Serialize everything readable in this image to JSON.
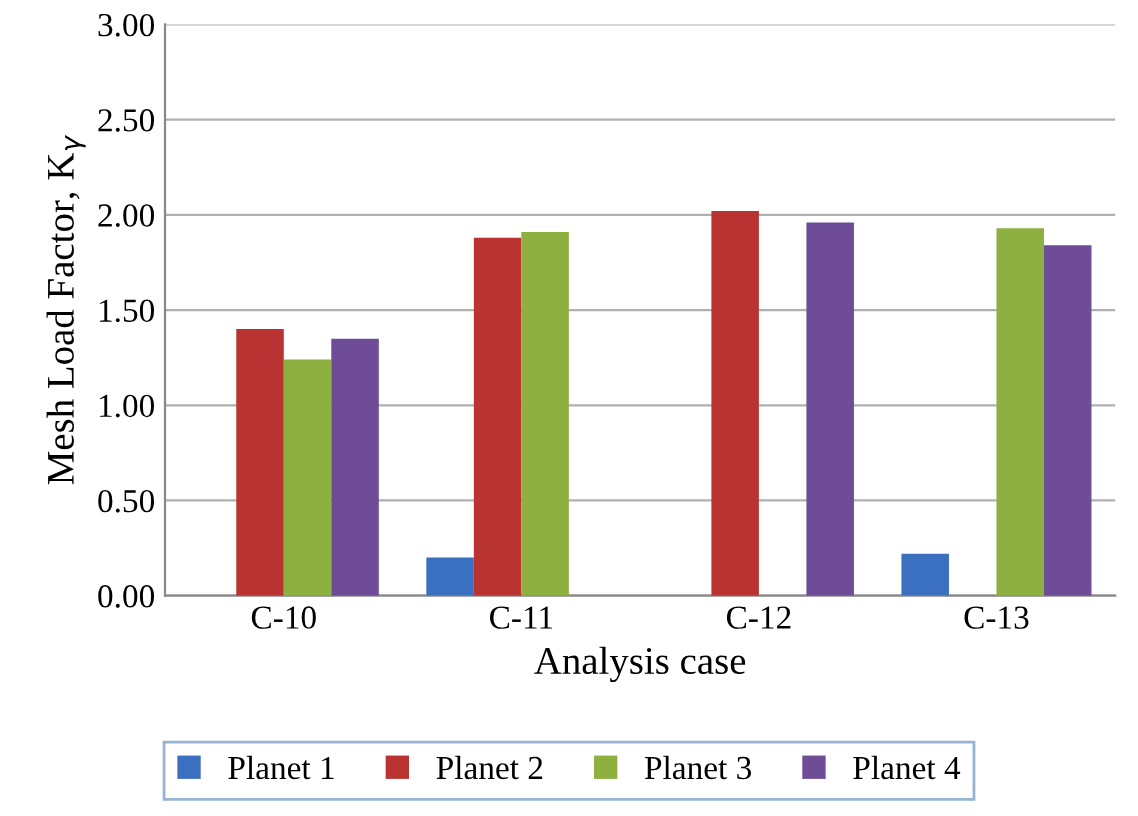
{
  "chart_data": {
    "type": "bar",
    "xlabel": "Analysis case",
    "ylabel": "Mesh Load Factor, K$_{γ}$",
    "categories": [
      "C-10",
      "C-11",
      "C-12",
      "C-13"
    ],
    "series": [
      {
        "name": "Planet 1",
        "color": "#3a70bf",
        "values": [
          0,
          0.2,
          0,
          0.22
        ]
      },
      {
        "name": "Planet 2",
        "color": "#b83331",
        "values": [
          1.4,
          1.88,
          2.02,
          0
        ]
      },
      {
        "name": "Planet 3",
        "color": "#8db040",
        "values": [
          1.24,
          1.91,
          0,
          1.93
        ]
      },
      {
        "name": "Planet 4",
        "color": "#6e4c97",
        "values": [
          1.35,
          0,
          1.96,
          1.84
        ]
      }
    ],
    "ylim": [
      0,
      3
    ],
    "yticks": [
      {
        "value": 0,
        "label": "0.00"
      },
      {
        "value": 0.5,
        "label": "0.50"
      },
      {
        "value": 1,
        "label": "1.00"
      },
      {
        "value": 1.5,
        "label": "1.50"
      },
      {
        "value": 2,
        "label": "2.00"
      },
      {
        "value": 2.5,
        "label": "2.50"
      },
      {
        "value": 3,
        "label": "3.00"
      }
    ],
    "grid": "y",
    "legend": "bottom"
  }
}
